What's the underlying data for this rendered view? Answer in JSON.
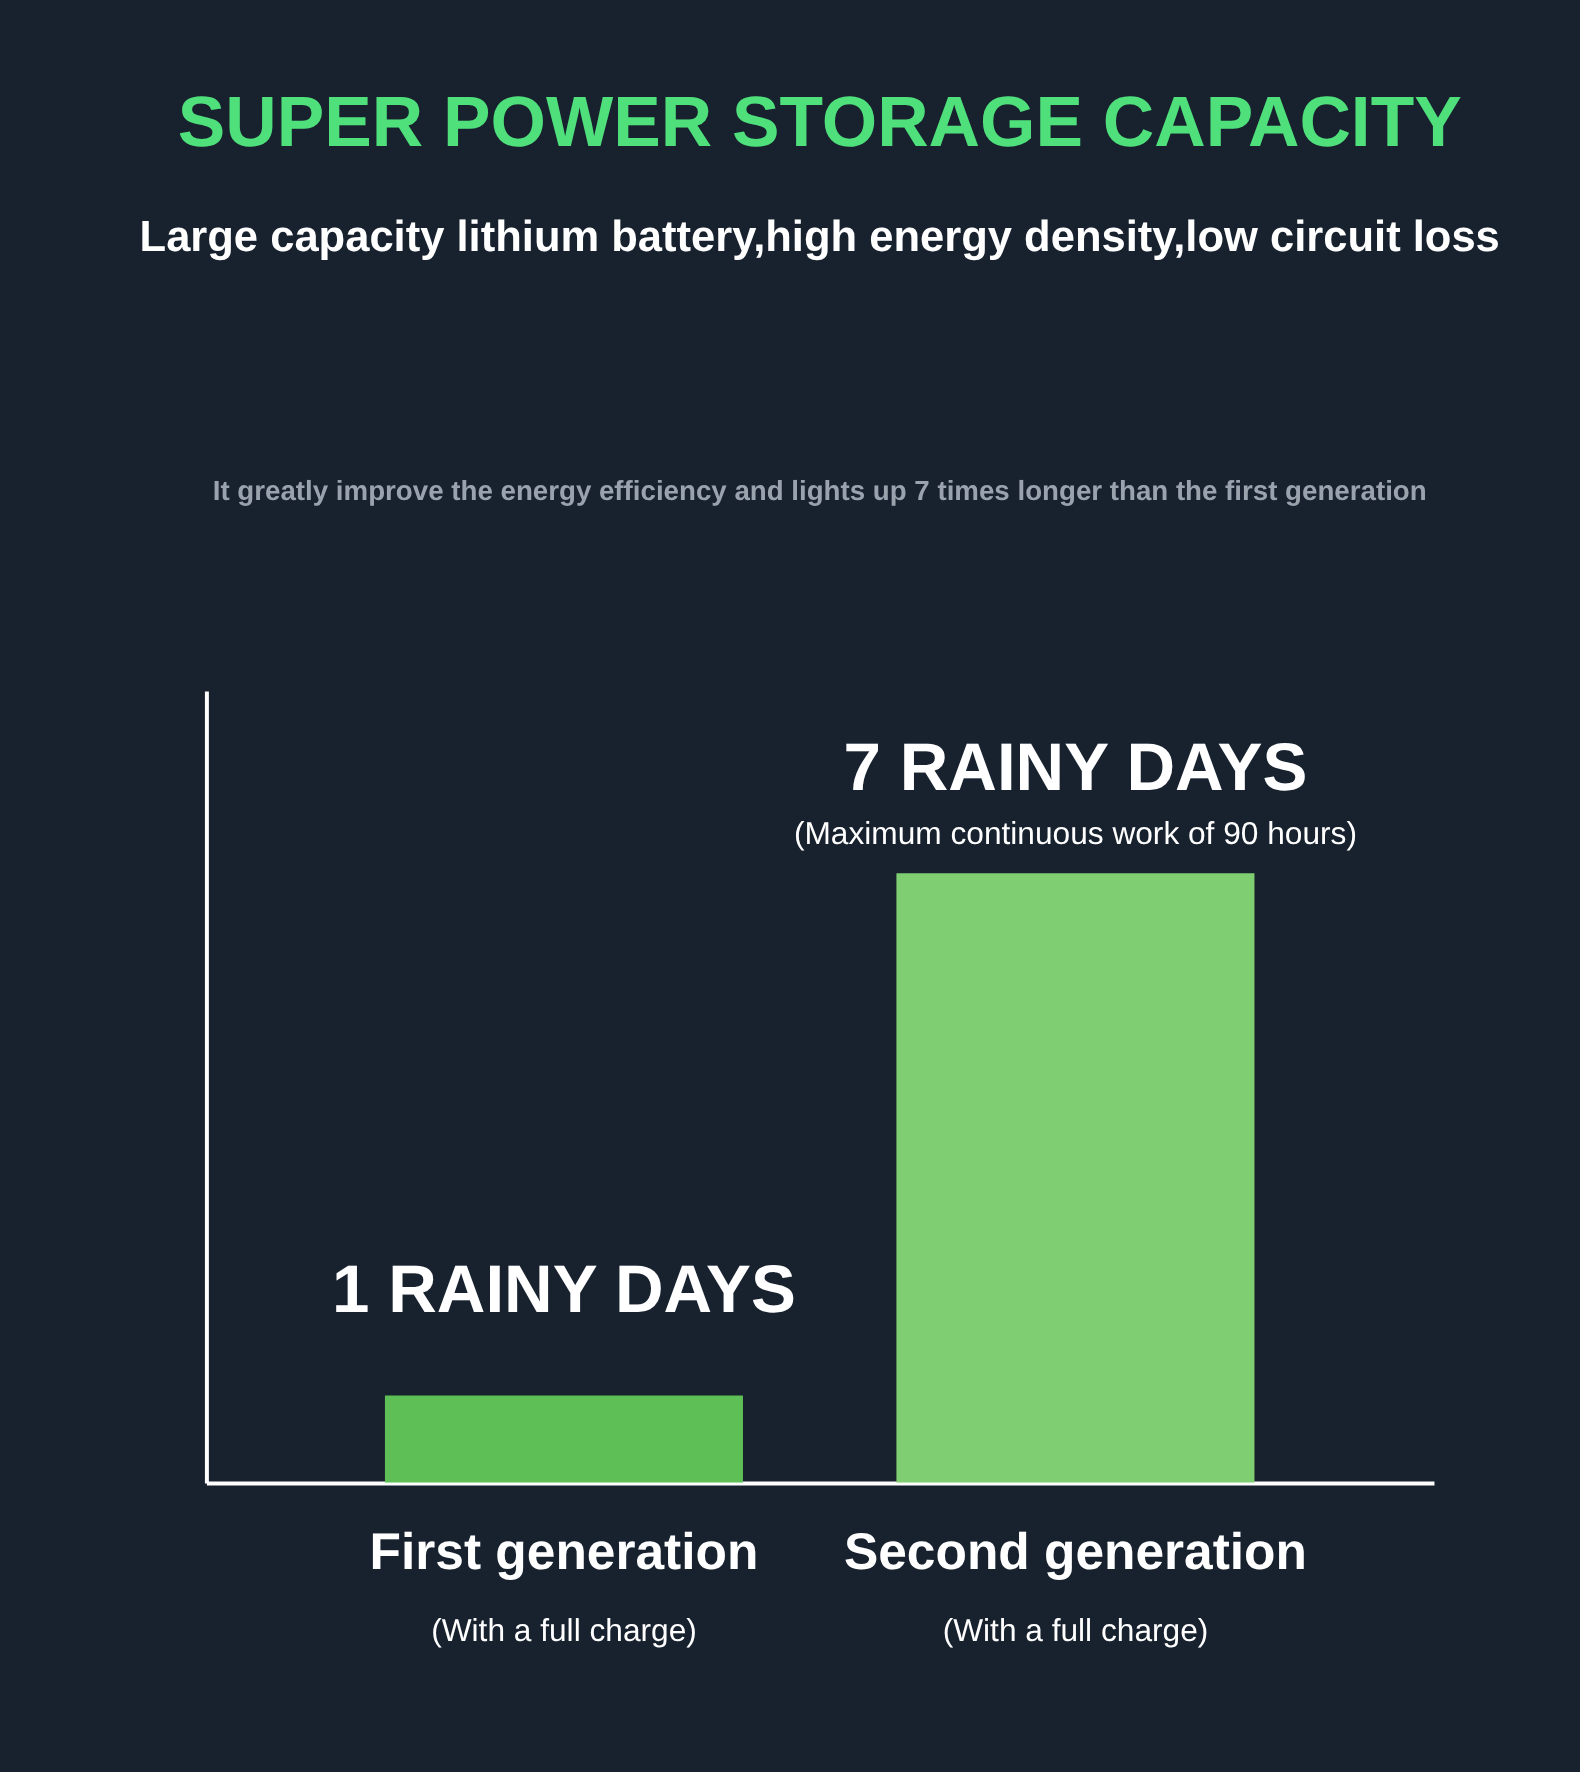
{
  "chart_data": {
    "type": "bar",
    "title": "SUPER POWER STORAGE CAPACITY",
    "subtitle": "Large capacity lithium battery,high energy density,low circuit loss",
    "categories": [
      "First generation",
      "Second generation"
    ],
    "values": [
      1,
      7
    ],
    "colors": [
      "#5dbf55",
      "#7fcf72"
    ],
    "value_labels": [
      "1 RAINY DAYS",
      "7 RAINY DAYS"
    ],
    "annotations": [
      "It greatly improve the energy efficiency and lights up 7 times longer than the first generation",
      "(Maximum continuous work of 90 hours)",
      "(With a full charge)",
      "(With a full charge)"
    ]
  }
}
